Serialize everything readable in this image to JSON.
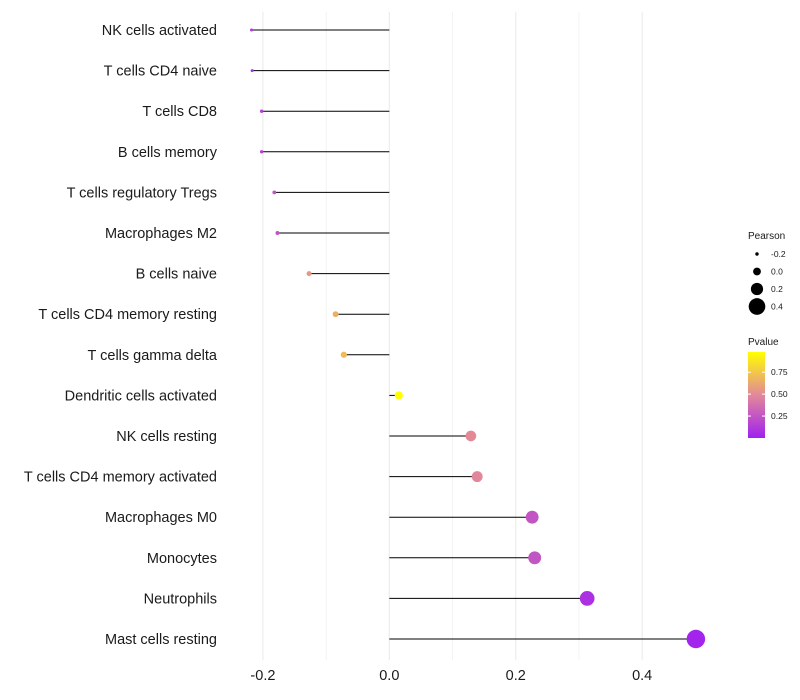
{
  "chart_data": {
    "type": "lollipop",
    "categories": [
      "NK cells activated",
      "T cells CD4 naive",
      "T cells CD8",
      "B cells memory",
      "T cells regulatory  Tregs ",
      "Macrophages M2",
      "B cells naive",
      "T cells CD4 memory resting",
      "T cells gamma delta",
      "Dendritic cells activated",
      "NK cells resting",
      "T cells CD4 memory activated",
      "Macrophages M0",
      "Monocytes",
      "Neutrophils",
      "Mast cells resting"
    ],
    "pearson": [
      -0.218,
      -0.217,
      -0.202,
      -0.202,
      -0.182,
      -0.177,
      -0.127,
      -0.085,
      -0.072,
      0.015,
      0.129,
      0.139,
      0.226,
      0.23,
      0.313,
      0.485
    ],
    "pvalue": [
      0.1,
      0.1,
      0.15,
      0.15,
      0.25,
      0.25,
      0.55,
      0.65,
      0.7,
      0.98,
      0.5,
      0.48,
      0.25,
      0.25,
      0.08,
      0.02
    ],
    "xlim": [
      -0.26,
      0.52
    ],
    "xticks": [
      -0.2,
      0.0,
      0.2,
      0.4
    ],
    "xtick_labels": [
      "-0.2",
      "0.0",
      "0.2",
      "0.4"
    ],
    "xlabel": "",
    "ylabel": "",
    "grid": true,
    "legend_size": {
      "title": "Pearson",
      "values": [
        -0.2,
        0.0,
        0.2,
        0.4
      ],
      "labels": [
        "-0.2",
        "0.0",
        "0.2",
        "0.4"
      ]
    },
    "legend_color": {
      "title": "Pvalue",
      "ticks": [
        0.25,
        0.5,
        0.75
      ],
      "labels": [
        "0.25",
        "0.50",
        "0.75"
      ],
      "range": [
        0.0,
        0.98
      ],
      "low_color": "#a020f0",
      "mid_color": "#e3889a",
      "high_color": "#ffff00"
    },
    "colors": {
      "stem": "#000000",
      "grid": "#ebebeb"
    }
  }
}
